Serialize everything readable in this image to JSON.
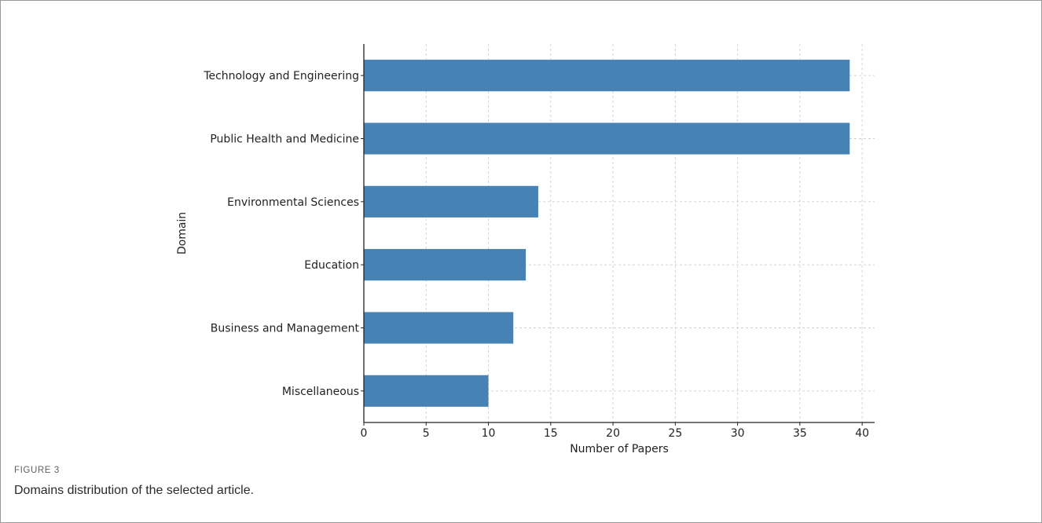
{
  "figure": {
    "label": "FIGURE 3",
    "caption": "Domains distribution of the selected article."
  },
  "chart_data": {
    "type": "bar",
    "orientation": "horizontal",
    "categories": [
      "Technology and Engineering",
      "Public Health and Medicine",
      "Environmental Sciences",
      "Education",
      "Business and Management",
      "Miscellaneous"
    ],
    "values": [
      39,
      39,
      14,
      13,
      12,
      10
    ],
    "xlabel": "Number of Papers",
    "ylabel": "Domain",
    "xlim": [
      0,
      41
    ],
    "xticks": [
      0,
      5,
      10,
      15,
      20,
      25,
      30,
      35,
      40
    ],
    "grid": true,
    "bar_color": "#4682b4",
    "grid_color": "#d0d0d0"
  }
}
